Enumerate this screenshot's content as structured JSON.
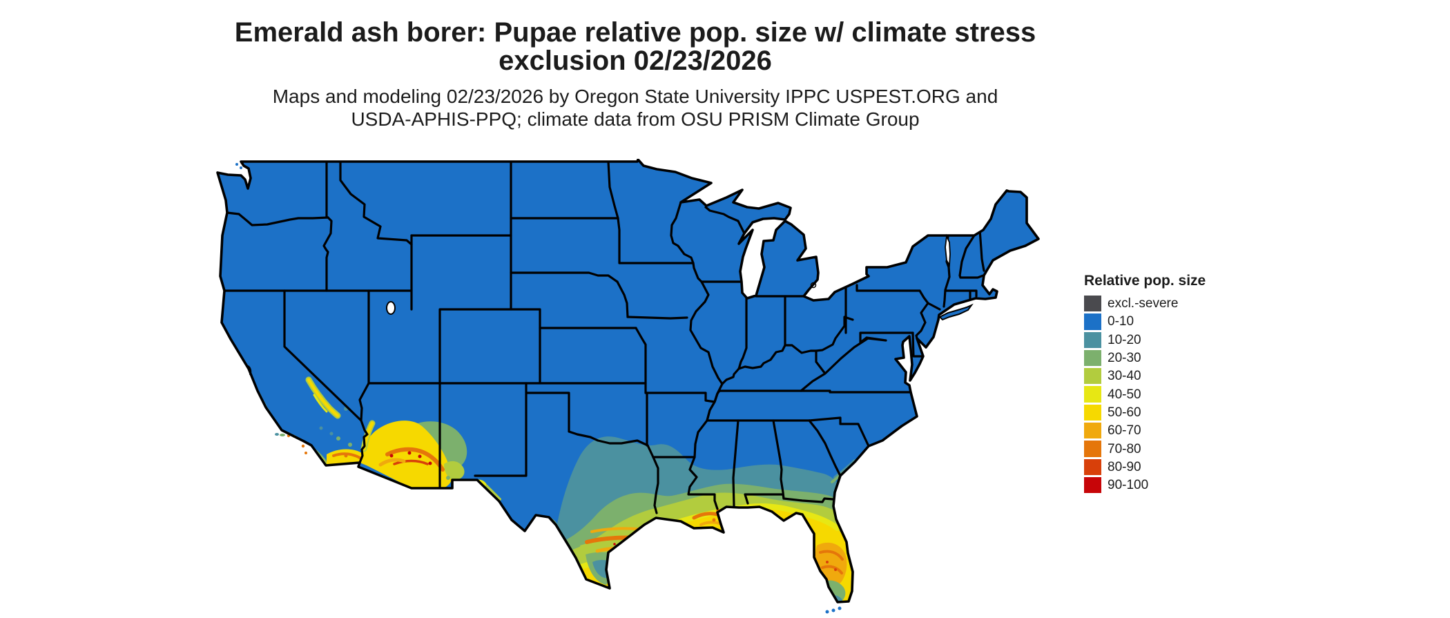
{
  "title": {
    "line1": "Emerald ash borer: Pupae relative pop. size w/ climate stress",
    "line2": "exclusion 02/23/2026"
  },
  "subtitle": {
    "line1": "Maps and modeling 02/23/2026 by Oregon State University IPPC USPEST.ORG and",
    "line2": "USDA-APHIS-PPQ; climate data from OSU PRISM Climate Group"
  },
  "legend": {
    "title": "Relative pop. size",
    "items": [
      {
        "label": "excl.-severe",
        "color": "#4a4a4e"
      },
      {
        "label": "0-10",
        "color": "#1c71c7"
      },
      {
        "label": "10-20",
        "color": "#4b91a0"
      },
      {
        "label": "20-30",
        "color": "#7cb06d"
      },
      {
        "label": "30-40",
        "color": "#b2cc3e"
      },
      {
        "label": "40-50",
        "color": "#e7e714"
      },
      {
        "label": "50-60",
        "color": "#f6d900"
      },
      {
        "label": "60-70",
        "color": "#f0a90d"
      },
      {
        "label": "70-80",
        "color": "#e5760a"
      },
      {
        "label": "80-90",
        "color": "#d8400a"
      },
      {
        "label": "90-100",
        "color": "#c70508"
      }
    ]
  },
  "map": {
    "region": "Contiguous United States",
    "border_color": "#000000",
    "water_color": "#ffffff",
    "palette": {
      "excl": "#4a4a4e",
      "c0_10": "#1c71c7",
      "c10_20": "#4b91a0",
      "c20_30": "#7cb06d",
      "c30_40": "#b2cc3e",
      "c40_50": "#e7e714",
      "c50_60": "#f6d900",
      "c60_70": "#f0a90d",
      "c70_80": "#e5760a",
      "c80_90": "#d8400a",
      "c90_100": "#c70508"
    }
  }
}
